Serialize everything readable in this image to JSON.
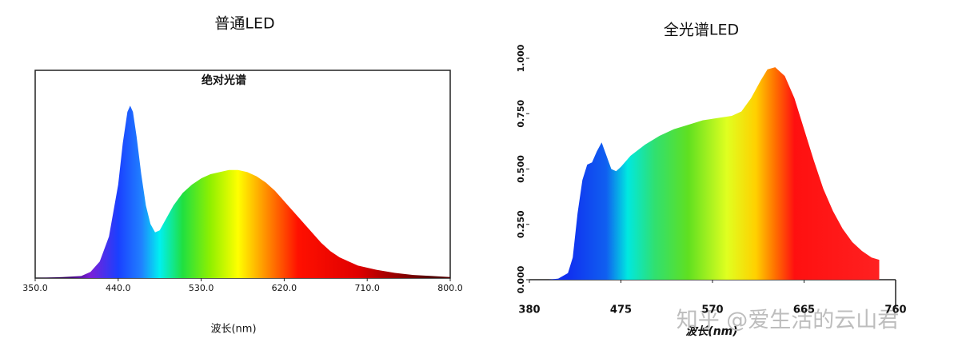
{
  "chart_data": [
    {
      "type": "area",
      "title": "普通LED",
      "subtitle": "绝对光谱",
      "x_label": "波长(nm)",
      "xlim": [
        350,
        800
      ],
      "xticks": [
        {
          "value": 350,
          "label": "350.0"
        },
        {
          "value": 440,
          "label": "440.0"
        },
        {
          "value": 530,
          "label": "530.0"
        },
        {
          "value": 620,
          "label": "620.0"
        },
        {
          "value": 710,
          "label": "710.0"
        },
        {
          "value": 800,
          "label": "800.0"
        }
      ],
      "ylim": [
        0,
        1
      ],
      "x": [
        350,
        380,
        400,
        410,
        420,
        430,
        440,
        445,
        450,
        453,
        456,
        460,
        465,
        470,
        475,
        480,
        485,
        490,
        500,
        510,
        520,
        530,
        540,
        550,
        560,
        570,
        580,
        590,
        600,
        610,
        620,
        630,
        640,
        650,
        660,
        670,
        680,
        690,
        700,
        720,
        740,
        760,
        780,
        800
      ],
      "values": [
        0,
        0.005,
        0.01,
        0.03,
        0.08,
        0.2,
        0.45,
        0.65,
        0.8,
        0.83,
        0.8,
        0.68,
        0.5,
        0.35,
        0.26,
        0.22,
        0.23,
        0.27,
        0.35,
        0.41,
        0.45,
        0.48,
        0.5,
        0.51,
        0.52,
        0.52,
        0.51,
        0.49,
        0.46,
        0.42,
        0.37,
        0.32,
        0.27,
        0.22,
        0.17,
        0.13,
        0.1,
        0.08,
        0.06,
        0.04,
        0.025,
        0.015,
        0.01,
        0.005
      ]
    },
    {
      "type": "area",
      "title": "全光谱LED",
      "x_label": "波长(nm)",
      "watermark": "知乎 @爱生活的云山君",
      "xlim": [
        380,
        760
      ],
      "xticks": [
        380,
        475,
        570,
        665,
        760
      ],
      "ylim": [
        0,
        1
      ],
      "yticks": [
        {
          "value": 0,
          "label": "0.000"
        },
        {
          "value": 0.25,
          "label": "0.250"
        },
        {
          "value": 0.5,
          "label": "0.500"
        },
        {
          "value": 0.75,
          "label": "0.750"
        },
        {
          "value": 1,
          "label": "1.000"
        }
      ],
      "x": [
        380,
        400,
        410,
        420,
        425,
        430,
        435,
        440,
        445,
        450,
        455,
        460,
        465,
        470,
        475,
        485,
        500,
        515,
        530,
        545,
        560,
        575,
        590,
        600,
        610,
        620,
        627,
        635,
        645,
        655,
        665,
        675,
        685,
        695,
        705,
        715,
        725,
        735,
        743
      ],
      "values": [
        0,
        0,
        0.005,
        0.03,
        0.1,
        0.3,
        0.45,
        0.52,
        0.53,
        0.58,
        0.62,
        0.56,
        0.5,
        0.49,
        0.51,
        0.56,
        0.61,
        0.65,
        0.68,
        0.7,
        0.72,
        0.73,
        0.74,
        0.76,
        0.82,
        0.9,
        0.95,
        0.96,
        0.92,
        0.82,
        0.68,
        0.54,
        0.41,
        0.31,
        0.23,
        0.17,
        0.13,
        0.1,
        0.09
      ]
    }
  ]
}
